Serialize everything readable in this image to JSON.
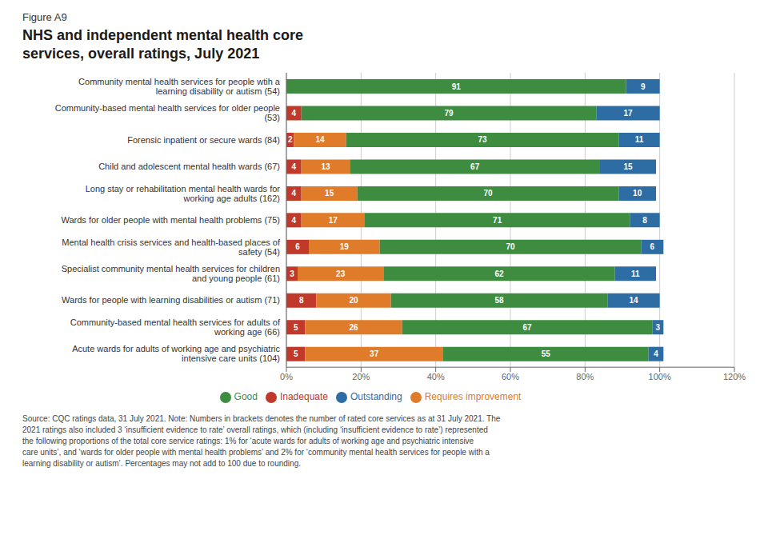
{
  "chart_data": {
    "type": "bar",
    "orientation": "horizontal",
    "stacked": true,
    "subtitle": "Figure A9",
    "title": "NHS and independent mental health core\nservices, overall ratings, July 2021",
    "categories": [
      "Community mental health services for people wtih a learning disability or autism (54)",
      "Community-based mental health services for older people (53)",
      "Forensic inpatient or secure wards (84)",
      "Child and adolescent mental health wards (67)",
      "Long stay or rehabilitation mental health wards for working age adults (162)",
      "Wards for older people with mental health problems (75)",
      "Mental health crisis services and health-based places of safety (54)",
      "Specialist community mental health services for children and young people (61)",
      "Wards for people with learning disabilities or autism (71)",
      "Community-based mental health services for adults of working age (66)",
      "Acute wards for adults of working age and psychiatric intensive care units (104)"
    ],
    "series": [
      {
        "name": "Inadequate",
        "color": "#c0392b",
        "values": [
          0,
          4,
          2,
          4,
          4,
          4,
          6,
          3,
          8,
          5,
          5
        ]
      },
      {
        "name": "Requires improvement",
        "color": "#e07b2a",
        "values": [
          0,
          0,
          14,
          13,
          15,
          17,
          19,
          23,
          20,
          26,
          37
        ]
      },
      {
        "name": "Good",
        "color": "#3d8c40",
        "values": [
          91,
          79,
          73,
          67,
          70,
          71,
          70,
          62,
          58,
          67,
          55
        ]
      },
      {
        "name": "Outstanding",
        "color": "#2e6da4",
        "values": [
          9,
          17,
          11,
          15,
          10,
          8,
          6,
          11,
          14,
          3,
          4
        ]
      }
    ],
    "xlim": [
      0,
      120
    ],
    "xticks": [
      {
        "value": 0,
        "label": "0%"
      },
      {
        "value": 20,
        "label": "20%"
      },
      {
        "value": 40,
        "label": "40%"
      },
      {
        "value": 60,
        "label": "60%"
      },
      {
        "value": 80,
        "label": "80%"
      },
      {
        "value": 100,
        "label": "100%"
      },
      {
        "value": 120,
        "label": "120%"
      }
    ],
    "grid": true,
    "data_labels": true,
    "legend": "bottom",
    "annotations": [
      "Source: CQC ratings data, 31 July 2021. Note: Numbers in brackets denotes the number of rated core services as at 31 July 2021. The\n2021 ratings also included 3 ‘insufficient evidence to rate’ overall ratings, which (including ‘insufficient evidence to rate’) represented\nthe following proportions of the total core service ratings: 1% for ‘acute wards for adults of working age and psychiatric intensive\ncare units’, and ‘wards for older people with mental health problems’ and 2% for ‘community mental health services for people with a\nlearning disability or autism’. Percentages may not add to 100 due to rounding."
    ]
  }
}
